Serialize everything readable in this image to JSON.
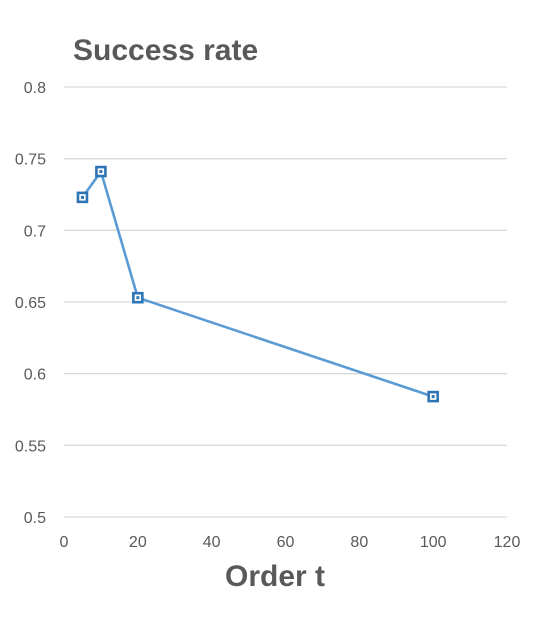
{
  "chart_data": {
    "type": "line",
    "title": "Success rate",
    "xlabel": "Order t",
    "ylabel": "",
    "xlim": [
      0,
      120
    ],
    "ylim": [
      0.5,
      0.8
    ],
    "xticks": [
      "0",
      "20",
      "40",
      "60",
      "80",
      "100",
      "120"
    ],
    "yticks": [
      "0.5",
      "0.55",
      "0.6",
      "0.65",
      "0.7",
      "0.75",
      "0.8"
    ],
    "grid": true,
    "legend": "none",
    "series": [
      {
        "color": "#5b9bd5",
        "marker_color": "#2e75b6",
        "x": [
          5,
          10,
          20,
          100
        ],
        "y": [
          0.723,
          0.741,
          0.653,
          0.584
        ]
      }
    ]
  }
}
